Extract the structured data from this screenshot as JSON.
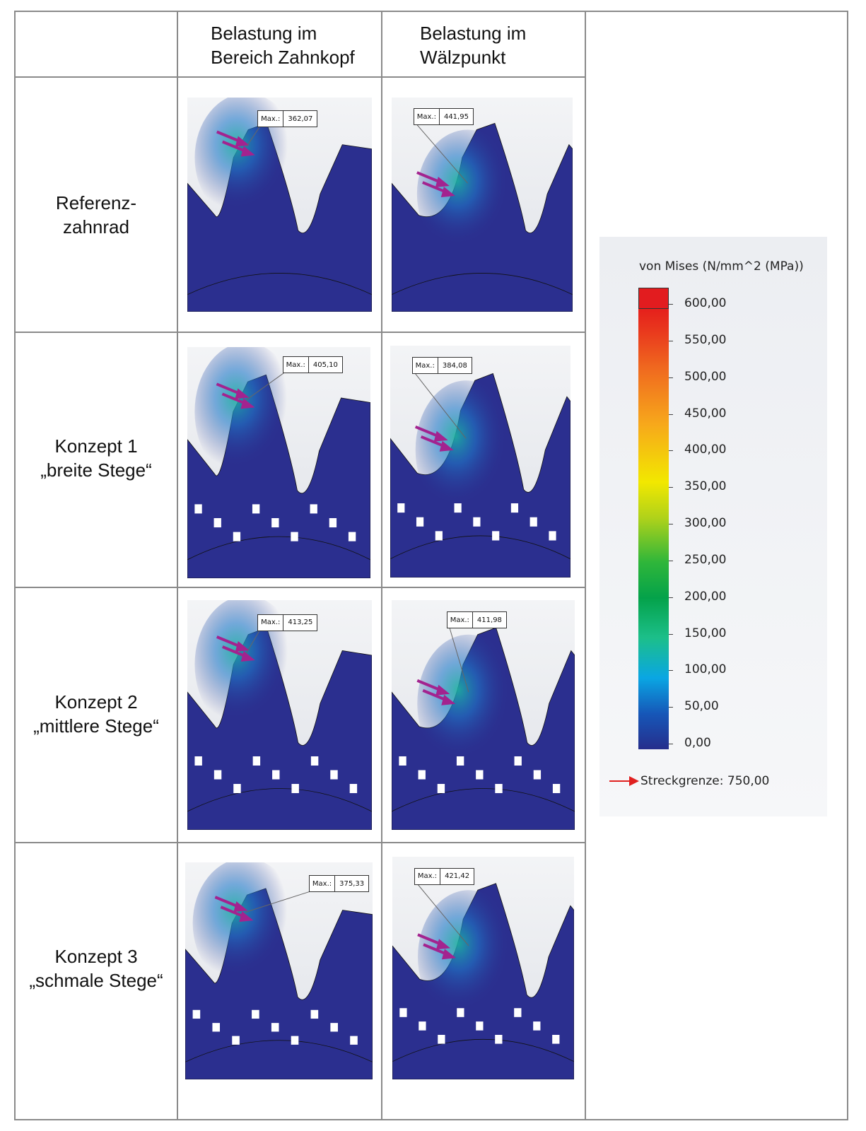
{
  "header": {
    "col1": [
      "Belastung im",
      "Bereich Zahnkopf"
    ],
    "col2": [
      "Belastung im",
      "Wälzpunkt"
    ]
  },
  "rows": [
    {
      "label": [
        "Referenz-",
        "zahnrad"
      ],
      "max_kopf": "362,07",
      "max_waelz": "441,95"
    },
    {
      "label": [
        "Konzept 1",
        "„breite Stege“"
      ],
      "max_kopf": "405,10",
      "max_waelz": "384,08"
    },
    {
      "label": [
        "Konzept 2",
        "„mittlere Stege“"
      ],
      "max_kopf": "413,25",
      "max_waelz": "411,98"
    },
    {
      "label": [
        "Konzept 3",
        "„schmale Stege“"
      ],
      "max_kopf": "375,33",
      "max_waelz": "421,42"
    }
  ],
  "callout_key": "Max.:",
  "legend": {
    "title": "von Mises (N/mm^2 (MPa))",
    "ticks": [
      "600,00",
      "550,00",
      "500,00",
      "450,00",
      "400,00",
      "350,00",
      "300,00",
      "250,00",
      "200,00",
      "150,00",
      "100,00",
      "50,00",
      "0,00"
    ],
    "yield_label": "Streckgrenze: 750,00"
  },
  "colors": {
    "mesh": "#2b2f8f",
    "arrow": "#a3238f",
    "yield_arrow": "#e02020"
  }
}
